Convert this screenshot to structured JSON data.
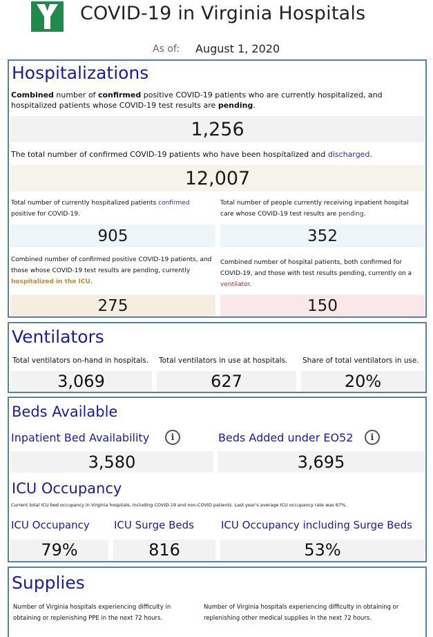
{
  "header": {
    "logo_icon": "virginia-v-logo",
    "title": "COVID-19 in Virginia Hospitals",
    "as_of_label": "As of:",
    "as_of_date": "August 1, 2020"
  },
  "hospitalizations": {
    "title": "Hospitalizations",
    "combined": {
      "desc_1": "Combined",
      "desc_2": " number of ",
      "desc_3": "confirmed",
      "desc_4": " positive COVID-19 patients who are currently hospitalized, and hospitalized patients whose COVID-19 test results are ",
      "desc_5": "pending",
      "desc_6": ".",
      "value": "1,256"
    },
    "discharged": {
      "desc_1": "The total number of confirmed COVID-19 patients who have been hospitalized and ",
      "desc_2": "discharged",
      "desc_3": ".",
      "value": "12,007"
    },
    "confirmed": {
      "desc_1": "Total number of currently hospitalized patients ",
      "desc_2": "confirmed",
      "desc_3": " positive for COVID-19.",
      "value": "905"
    },
    "pending": {
      "desc_1": "Total number of people currently receiving inpatient hospital care whose COVID-19 test results are ",
      "desc_2": "pending",
      "desc_3": ".",
      "value": "352"
    },
    "icu": {
      "desc_1": "Combined number of confirmed positive COVID-19 patients, and those whose COVID-19 test results are pending, currently ",
      "desc_2": "hospitalized in the ICU",
      "desc_3": ".",
      "value": "275"
    },
    "ventilator": {
      "desc_1": "Combined number of hospital patients, both confirmed for COVID-19, and those with test results pending, currently on a ",
      "desc_2": "ventilator",
      "desc_3": ".",
      "value": "150"
    }
  },
  "ventilators": {
    "title": "Ventilators",
    "on_hand_label": "Total ventilators on-hand in hospitals.",
    "on_hand_value": "3,069",
    "in_use_label": "Total ventilators in use at hospitals.",
    "in_use_value": "627",
    "share_label": "Share of total ventilators in use.",
    "share_value": "20%"
  },
  "beds": {
    "title": "Beds Available",
    "inpatient_label": "Inpatient Bed Availability",
    "inpatient_value": "3,580",
    "added_label": "Beds Added under EO52",
    "added_value": "3,695",
    "info_glyph": "i",
    "icu_title": "ICU Occupancy",
    "icu_note": "Current total ICU bed occupancy in Virginia hospitals, including COVID-19 and non-COVID patients. Last year's average ICU occupancy rate was 67%.",
    "icu_occupancy_label": "ICU Occupancy",
    "icu_occupancy_value": "79%",
    "icu_surge_label": "ICU Surge Beds",
    "icu_surge_value": "816",
    "icu_incl_surge_label": "ICU Occupancy including Surge Beds",
    "icu_incl_surge_value": "53%"
  },
  "supplies": {
    "title": "Supplies",
    "ppe_label": "Number of Virginia hospitals experiencing difficulty in obtaining or replenishing PPE in the next 72 hours.",
    "other_label": "Number of Virginia hospitals experiencing difficulty in obtaining or replenishing other medical supplies in the next 72 hours."
  },
  "colors": {
    "title_blue": "#1a1aa6",
    "border": "#5a7fa0",
    "box_gray": "#f2f2f2",
    "box_beige": "#f6f3ea",
    "box_blue": "#eef5f9",
    "box_tan": "#f5ede0",
    "box_pink": "#fbe7e7",
    "icu_orange": "#c78a1c",
    "vent_red": "#c0242b"
  }
}
